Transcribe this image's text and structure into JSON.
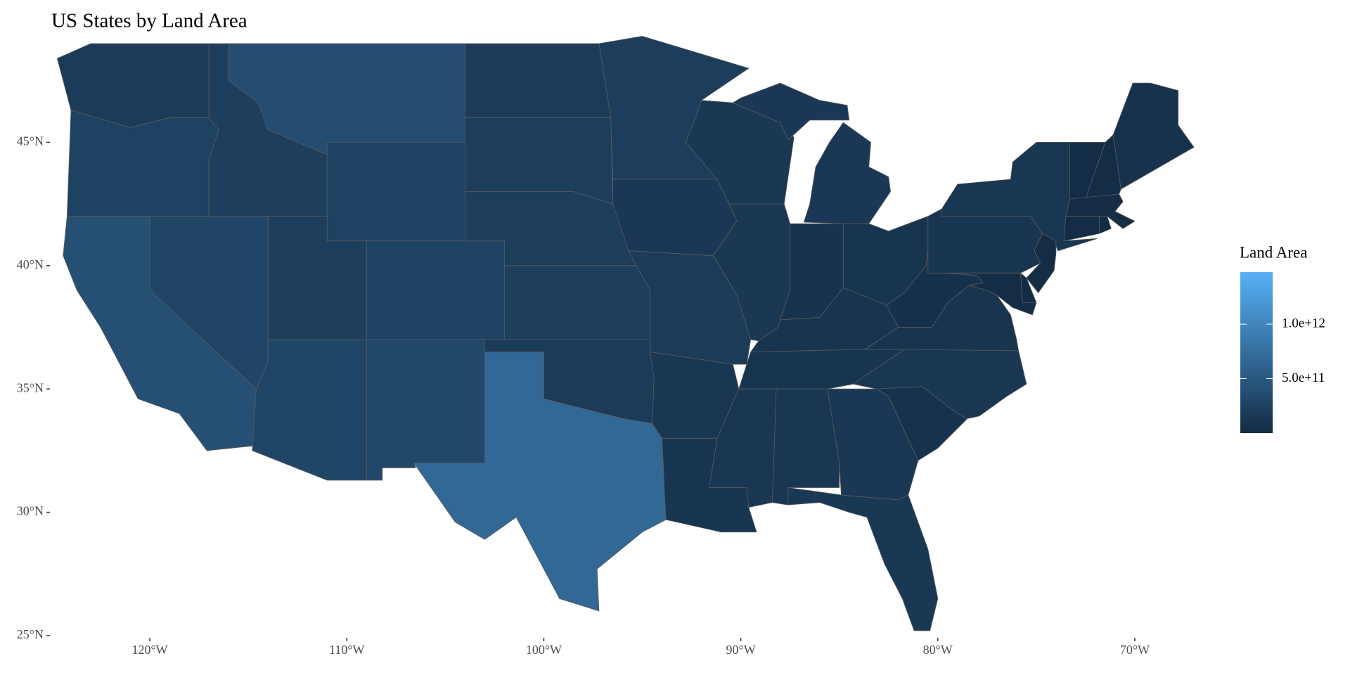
{
  "chart_data": {
    "type": "choropleth",
    "title": "US States by Land Area",
    "legend_title": "Land Area",
    "values": [
      172100000000,
      248600000000,
      403500000000,
      284300000000,
      214000000000,
      377000000000,
      251500000000,
      212800000000,
      294200000000,
      268400000000,
      314200000000,
      178700000000,
      196300000000,
      199000000000,
      211800000000,
      177700000000,
      676600000000,
      206200000000,
      144700000000,
      178000000000,
      134800000000,
      111900000000,
      140300000000,
      143800000000,
      146400000000,
      92800000000,
      105800000000,
      102300000000,
      106800000000,
      121500000000,
      131200000000,
      149000000000,
      138900000000,
      77900000000,
      125900000000,
      102300000000,
      62300000000,
      115900000000,
      122100000000,
      23900000000,
      23200000000,
      79900000000,
      20200000000,
      2680000000,
      12540000000,
      19050000000,
      5050000000,
      25140000000
    ],
    "fill_lim": [
      158000000,
      1478000000000
    ],
    "fill_ticks": [
      {
        "value": 500000000000,
        "label": "5.0e+11"
      },
      {
        "value": 1000000000000,
        "label": "1.0e+12"
      }
    ],
    "low_color": "#132B43",
    "high_color": "#56B1F7",
    "border_color": "#5a5a5a",
    "xlim": [
      -125,
      -66.5
    ],
    "ylim": [
      25,
      49.4
    ],
    "xticks": [
      {
        "value": -120,
        "label": "120°W"
      },
      {
        "value": -110,
        "label": "110°W"
      },
      {
        "value": -100,
        "label": "100°W"
      },
      {
        "value": -90,
        "label": "90°W"
      },
      {
        "value": -80,
        "label": "80°W"
      },
      {
        "value": -70,
        "label": "70°W"
      }
    ],
    "yticks": [
      {
        "value": 25,
        "label": "25°N"
      },
      {
        "value": 30,
        "label": "30°N"
      },
      {
        "value": 35,
        "label": "35°N"
      },
      {
        "value": 40,
        "label": "40°N"
      },
      {
        "value": 45,
        "label": "45°N"
      }
    ]
  }
}
